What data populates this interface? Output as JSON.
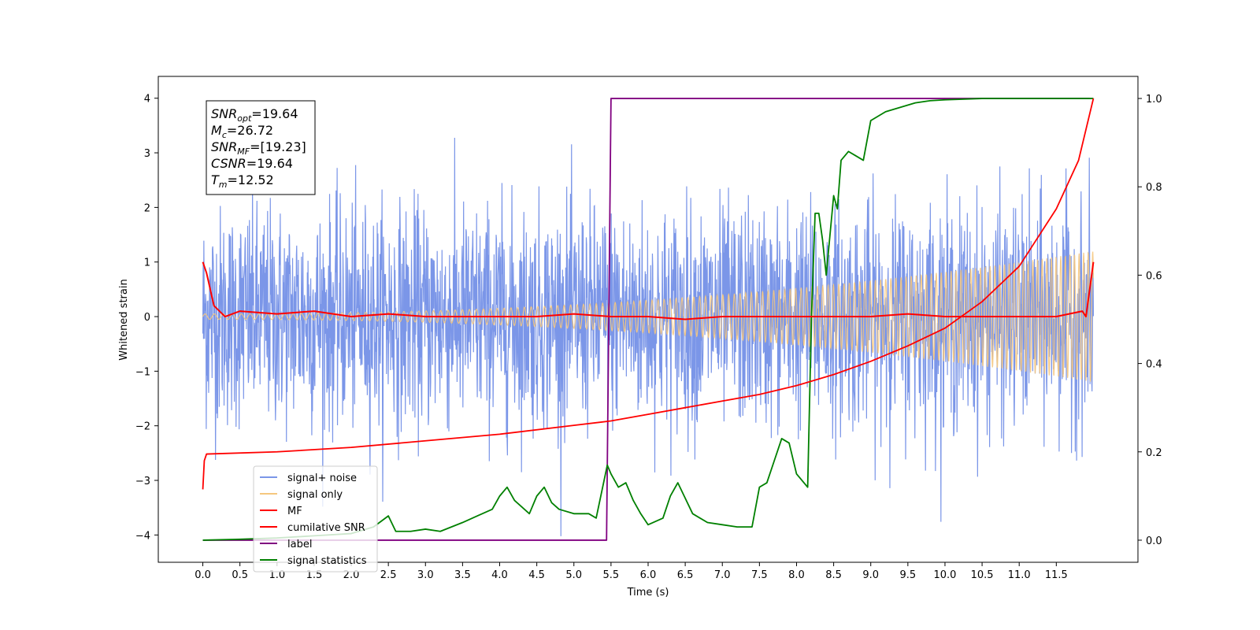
{
  "chart_data": {
    "type": "line",
    "xlabel": "Time (s)",
    "ylabel_left": "Whitened strain",
    "xlim": [
      -0.6,
      12.6
    ],
    "ylim_left": [
      -4.5,
      4.4
    ],
    "ylim_right": [
      -0.05,
      1.05
    ],
    "x_ticks": [
      "0.0",
      "0.5",
      "1.0",
      "1.5",
      "2.0",
      "2.5",
      "3.0",
      "3.5",
      "4.0",
      "4.5",
      "5.0",
      "5.5",
      "6.0",
      "6.5",
      "7.0",
      "7.5",
      "8.0",
      "8.5",
      "9.0",
      "9.5",
      "10.0",
      "10.5",
      "11.0",
      "11.5"
    ],
    "y_ticks_left": [
      "4",
      "3",
      "2",
      "1",
      "0",
      "−1",
      "−2",
      "−3",
      "−4"
    ],
    "y_ticks_right": [
      "1.0",
      "0.8",
      "0.6",
      "0.4",
      "0.2",
      "0.0"
    ],
    "grid": false,
    "legend_position": "lower-left",
    "annotation": [
      {
        "base": "SNR",
        "sub": "opt",
        "value": "=19.64"
      },
      {
        "base": "M",
        "sub": "c",
        "value": "=26.72"
      },
      {
        "base": "SNR",
        "sub": "MF",
        "value": "=[19.23]"
      },
      {
        "base": "CSNR",
        "sub": "",
        "value": "=19.64"
      },
      {
        "base": "T",
        "sub": "m",
        "value": "=12.52"
      }
    ],
    "series": [
      {
        "name": "signal+ noise",
        "axis": "left",
        "color": "#7b96e8",
        "style": "noise",
        "std": 1.0,
        "x_range": [
          0,
          12.0
        ]
      },
      {
        "name": "signal only",
        "axis": "left",
        "color": "#f5c77e",
        "style": "chirp",
        "amplitude_start": 0.05,
        "amplitude_end": 1.2,
        "x_range": [
          0,
          12.0
        ]
      },
      {
        "name": "MF",
        "axis": "left",
        "color": "#ff0000",
        "x": [
          0.0,
          0.05,
          0.15,
          0.3,
          0.5,
          1.0,
          1.5,
          2.0,
          2.5,
          3.0,
          3.5,
          4.0,
          4.5,
          5.0,
          5.5,
          6.0,
          6.5,
          7.0,
          7.5,
          8.0,
          8.5,
          9.0,
          9.5,
          10.0,
          10.5,
          11.0,
          11.5,
          11.85,
          11.9,
          11.95,
          12.0
        ],
        "values": [
          1.0,
          0.8,
          0.2,
          0.0,
          0.1,
          0.05,
          0.1,
          0.0,
          0.05,
          0.0,
          0.0,
          0.0,
          0.0,
          0.05,
          0.0,
          0.0,
          -0.05,
          0.0,
          0.0,
          0.0,
          0.0,
          0.0,
          0.05,
          0.0,
          0.0,
          0.0,
          0.0,
          0.1,
          0.0,
          0.5,
          1.0
        ]
      },
      {
        "name": "cumilative SNR",
        "axis": "right",
        "color": "#ff0000",
        "x": [
          0.0,
          0.02,
          0.05,
          1.0,
          2.0,
          3.0,
          4.0,
          5.0,
          5.5,
          6.0,
          6.5,
          7.0,
          7.5,
          8.0,
          8.5,
          9.0,
          9.5,
          10.0,
          10.5,
          11.0,
          11.5,
          11.8,
          12.0
        ],
        "values": [
          0.115,
          0.18,
          0.195,
          0.2,
          0.21,
          0.225,
          0.24,
          0.26,
          0.27,
          0.285,
          0.3,
          0.315,
          0.33,
          0.35,
          0.375,
          0.405,
          0.44,
          0.48,
          0.54,
          0.62,
          0.75,
          0.86,
          1.0
        ]
      },
      {
        "name": "label",
        "axis": "right",
        "color": "#800080",
        "x": [
          0.0,
          5.44,
          5.5,
          11.95
        ],
        "values": [
          0.0,
          0.0,
          1.0,
          1.0
        ]
      },
      {
        "name": "signal statistics",
        "axis": "right",
        "color": "#008000",
        "x": [
          0.0,
          0.5,
          1.0,
          1.5,
          2.0,
          2.3,
          2.5,
          2.6,
          2.8,
          3.0,
          3.2,
          3.5,
          3.7,
          3.9,
          4.0,
          4.1,
          4.2,
          4.4,
          4.5,
          4.6,
          4.7,
          4.8,
          5.0,
          5.2,
          5.3,
          5.4,
          5.45,
          5.5,
          5.6,
          5.7,
          5.8,
          5.9,
          6.0,
          6.2,
          6.3,
          6.4,
          6.5,
          6.6,
          6.8,
          7.0,
          7.2,
          7.4,
          7.5,
          7.6,
          7.7,
          7.8,
          7.9,
          8.0,
          8.1,
          8.15,
          8.2,
          8.25,
          8.3,
          8.35,
          8.4,
          8.5,
          8.55,
          8.6,
          8.7,
          8.8,
          8.9,
          9.0,
          9.1,
          9.2,
          9.4,
          9.6,
          9.8,
          10.0,
          10.5,
          11.0,
          11.5,
          12.0
        ],
        "values": [
          0.0,
          0.002,
          0.005,
          0.01,
          0.015,
          0.03,
          0.055,
          0.02,
          0.02,
          0.025,
          0.02,
          0.04,
          0.055,
          0.07,
          0.1,
          0.12,
          0.09,
          0.06,
          0.1,
          0.12,
          0.085,
          0.07,
          0.06,
          0.06,
          0.05,
          0.13,
          0.17,
          0.15,
          0.12,
          0.13,
          0.09,
          0.06,
          0.035,
          0.05,
          0.1,
          0.13,
          0.095,
          0.06,
          0.04,
          0.035,
          0.03,
          0.03,
          0.12,
          0.13,
          0.18,
          0.23,
          0.22,
          0.15,
          0.13,
          0.12,
          0.5,
          0.74,
          0.74,
          0.68,
          0.6,
          0.78,
          0.75,
          0.86,
          0.88,
          0.87,
          0.86,
          0.95,
          0.96,
          0.97,
          0.98,
          0.99,
          0.995,
          0.997,
          1.0,
          1.0,
          1.0,
          1.0
        ]
      }
    ]
  }
}
